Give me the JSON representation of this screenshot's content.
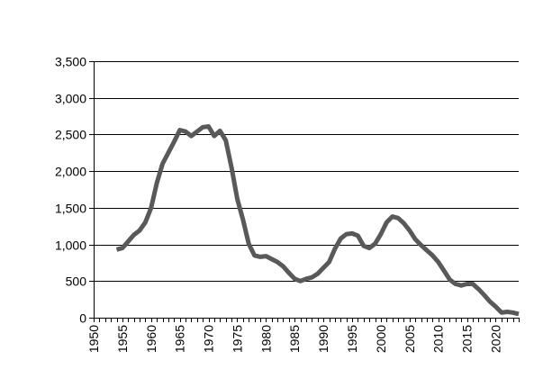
{
  "chart_data": {
    "type": "line",
    "title": "",
    "xlabel": "",
    "ylabel": "",
    "xlim": [
      1950,
      2024
    ],
    "ylim": [
      0,
      3500
    ],
    "grid": "horizontal",
    "line_color": "#595959",
    "y_ticks": [
      {
        "value": 0,
        "label": "0"
      },
      {
        "value": 500,
        "label": "500"
      },
      {
        "value": 1000,
        "label": "1,000"
      },
      {
        "value": 1500,
        "label": "1,500"
      },
      {
        "value": 2000,
        "label": "2,000"
      },
      {
        "value": 2500,
        "label": "2,500"
      },
      {
        "value": 3000,
        "label": "3,000"
      },
      {
        "value": 3500,
        "label": "3,500"
      }
    ],
    "x_ticks": [
      {
        "value": 1950,
        "label": "1950"
      },
      {
        "value": 1955,
        "label": "1955"
      },
      {
        "value": 1960,
        "label": "1960"
      },
      {
        "value": 1965,
        "label": "1965"
      },
      {
        "value": 1970,
        "label": "1970"
      },
      {
        "value": 1975,
        "label": "1975"
      },
      {
        "value": 1980,
        "label": "1980"
      },
      {
        "value": 1985,
        "label": "1985"
      },
      {
        "value": 1990,
        "label": "1990"
      },
      {
        "value": 1995,
        "label": "1995"
      },
      {
        "value": 2000,
        "label": "2000"
      },
      {
        "value": 2005,
        "label": "2005"
      },
      {
        "value": 2010,
        "label": "2010"
      },
      {
        "value": 2015,
        "label": "2015"
      },
      {
        "value": 2020,
        "label": "2020"
      }
    ],
    "series": [
      {
        "x": [
          1954,
          1955,
          1956,
          1957,
          1958,
          1959,
          1960,
          1961,
          1962,
          1963,
          1964,
          1965,
          1966,
          1967,
          1968,
          1969,
          1970,
          1971,
          1972,
          1973,
          1974,
          1975,
          1976,
          1977,
          1978,
          1979,
          1980,
          1981,
          1982,
          1983,
          1984,
          1985,
          1986,
          1987,
          1988,
          1989,
          1990,
          1991,
          1992,
          1993,
          1994,
          1995,
          1996,
          1997,
          1998,
          1999,
          2000,
          2001,
          2002,
          2003,
          2004,
          2005,
          2006,
          2007,
          2008,
          2009,
          2010,
          2011,
          2012,
          2013,
          2014,
          2015,
          2016,
          2017,
          2018,
          2019,
          2020,
          2021,
          2022,
          2023,
          2024
        ],
        "y": [
          930,
          950,
          1040,
          1130,
          1190,
          1300,
          1500,
          1840,
          2100,
          2250,
          2400,
          2560,
          2540,
          2480,
          2540,
          2600,
          2610,
          2480,
          2550,
          2420,
          2050,
          1620,
          1340,
          1010,
          850,
          830,
          840,
          800,
          760,
          700,
          610,
          530,
          500,
          530,
          550,
          600,
          680,
          760,
          940,
          1080,
          1140,
          1150,
          1120,
          980,
          950,
          1010,
          1140,
          1300,
          1380,
          1360,
          1290,
          1190,
          1070,
          990,
          920,
          850,
          760,
          640,
          520,
          460,
          440,
          460,
          460,
          390,
          310,
          220,
          150,
          70,
          80,
          70,
          50
        ]
      }
    ]
  }
}
